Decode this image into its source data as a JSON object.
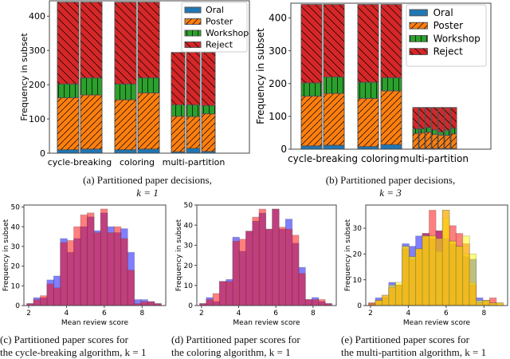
{
  "chart_data": [
    {
      "id": "a",
      "type": "bar",
      "stacked": true,
      "caption": "(a) Partitioned paper decisions,",
      "caption2": "k = 1",
      "ylabel": "Frequency in subset",
      "ylim": [
        0,
        445
      ],
      "yticks": [
        0,
        100,
        200,
        300,
        400
      ],
      "categories": [
        "cycle-breaking",
        "coloring",
        "multi-partition"
      ],
      "legend": {
        "placement": "top-right",
        "entries": [
          "Oral",
          "Poster",
          "Workshop",
          "Reject"
        ]
      },
      "groups": [
        {
          "bars": [
            [
              10,
              152,
              40,
              239
            ],
            [
              12,
              158,
              50,
              221
            ]
          ]
        },
        {
          "bars": [
            [
              10,
              146,
              46,
              239
            ],
            [
              12,
              164,
              44,
              221
            ]
          ]
        },
        {
          "bars": [
            [
              4,
              104,
              33,
              153
            ],
            [
              14,
              93,
              34,
              154
            ],
            [
              5,
              110,
              24,
              155
            ]
          ]
        }
      ]
    },
    {
      "id": "b",
      "type": "bar",
      "stacked": true,
      "caption": "(b) Partitioned paper decisions,",
      "caption2": "k = 3",
      "ylabel": "Frequency in subset",
      "ylim": [
        0,
        445
      ],
      "yticks": [
        0,
        100,
        200,
        300,
        400
      ],
      "categories": [
        "cycle-breaking",
        "coloring",
        "multi-partition"
      ],
      "legend": {
        "placement": "top-right",
        "entries": [
          "Oral",
          "Poster",
          "Workshop",
          "Reject"
        ]
      },
      "groups": [
        {
          "bars": [
            [
              10,
              152,
              40,
              239
            ],
            [
              12,
              158,
              50,
              221
            ]
          ]
        },
        {
          "bars": [
            [
              8,
              147,
              49,
              237
            ],
            [
              14,
              164,
              40,
              223
            ]
          ]
        },
        {
          "bars": [
            [
              2,
              46,
              14,
              65
            ],
            [
              2,
              48,
              12,
              65
            ],
            [
              2,
              50,
              14,
              61
            ],
            [
              2,
              43,
              14,
              68
            ],
            [
              2,
              41,
              9,
              75
            ],
            [
              2,
              40,
              16,
              69
            ],
            [
              2,
              45,
              17,
              63
            ]
          ]
        }
      ]
    },
    {
      "id": "c",
      "type": "histogram",
      "caption": "(c) Partitioned paper scores for",
      "caption2": "the cycle-breaking algorithm, k = 1",
      "xlabel": "Mean review score",
      "ylabel": "Frequency in subset",
      "xlim": [
        1.75,
        9.25
      ],
      "ylim": [
        0,
        51
      ],
      "xticks": [
        2,
        4,
        6,
        8
      ],
      "yticks": [
        0,
        10,
        20,
        30,
        40,
        50
      ],
      "bin_start": 1.9,
      "bin_width": 0.355,
      "series": [
        {
          "color": "#0000ff",
          "values": [
            1,
            4,
            4,
            13,
            15,
            34,
            27,
            34,
            40,
            45,
            38,
            47,
            40,
            37,
            39,
            27,
            3,
            3,
            2,
            1
          ]
        },
        {
          "color": "#ff0000",
          "values": [
            1,
            3,
            5,
            11,
            9,
            32,
            33,
            40,
            46,
            47,
            37,
            49,
            37,
            40,
            34,
            18,
            1,
            2,
            2,
            1
          ]
        }
      ]
    },
    {
      "id": "d",
      "type": "histogram",
      "caption": "(d) Partitioned paper scores for",
      "caption2": "the coloring algorithm, k = 1",
      "xlabel": "Mean review score",
      "ylabel": "Frequency in subset",
      "xlim": [
        1.75,
        9.25
      ],
      "ylim": [
        0,
        50
      ],
      "xticks": [
        2,
        4,
        6,
        8
      ],
      "yticks": [
        0,
        10,
        20,
        30,
        40,
        50
      ],
      "bin_start": 1.9,
      "bin_width": 0.355,
      "series": [
        {
          "color": "#0000ff",
          "values": [
            1,
            4,
            2,
            12,
            13,
            34,
            27,
            37,
            42,
            46,
            38,
            48,
            38,
            43,
            31,
            19,
            3,
            4,
            2,
            1
          ]
        },
        {
          "color": "#ff0000",
          "values": [
            1,
            3,
            6,
            12,
            12,
            32,
            33,
            37,
            44,
            48,
            38,
            48,
            39,
            38,
            35,
            16,
            3,
            3,
            3,
            1
          ]
        }
      ]
    },
    {
      "id": "e",
      "type": "histogram",
      "caption": "(e) Partitioned paper scores for",
      "caption2": "the multi-partition algorithm, k = 1",
      "xlabel": "Mean review score",
      "ylabel": "Frequency in subset",
      "xlim": [
        1.75,
        9.25
      ],
      "ylim": [
        0,
        39
      ],
      "xticks": [
        2,
        4,
        6,
        8
      ],
      "yticks": [
        0,
        10,
        20,
        30
      ],
      "bin_start": 1.9,
      "bin_width": 0.355,
      "series": [
        {
          "color": "#0000ff",
          "values": [
            1,
            3,
            3,
            9,
            8,
            24,
            23,
            27,
            28,
            26,
            29,
            26,
            24,
            23,
            19,
            18,
            3,
            2,
            1,
            0
          ]
        },
        {
          "color": "#ff0000",
          "values": [
            1,
            2,
            4,
            7,
            8,
            22,
            18,
            22,
            28,
            37,
            29,
            37,
            31,
            28,
            24,
            8,
            1,
            2,
            3,
            1
          ]
        },
        {
          "color": "#ffa500",
          "values": [
            1,
            2,
            3,
            7,
            8,
            23,
            19,
            22,
            27,
            27,
            21,
            34,
            25,
            23,
            20,
            9,
            1,
            2,
            1,
            1
          ]
        },
        {
          "color": "#ffff00",
          "values": [
            0,
            2,
            4,
            8,
            9,
            23,
            19,
            22,
            27,
            27,
            26,
            37,
            25,
            23,
            27,
            20,
            2,
            2,
            1,
            1
          ]
        }
      ]
    }
  ],
  "colors": {
    "Oral": "#1f77b4",
    "Poster": "#ff7f0e",
    "Workshop": "#2ca02c",
    "Reject": "#d62728"
  }
}
